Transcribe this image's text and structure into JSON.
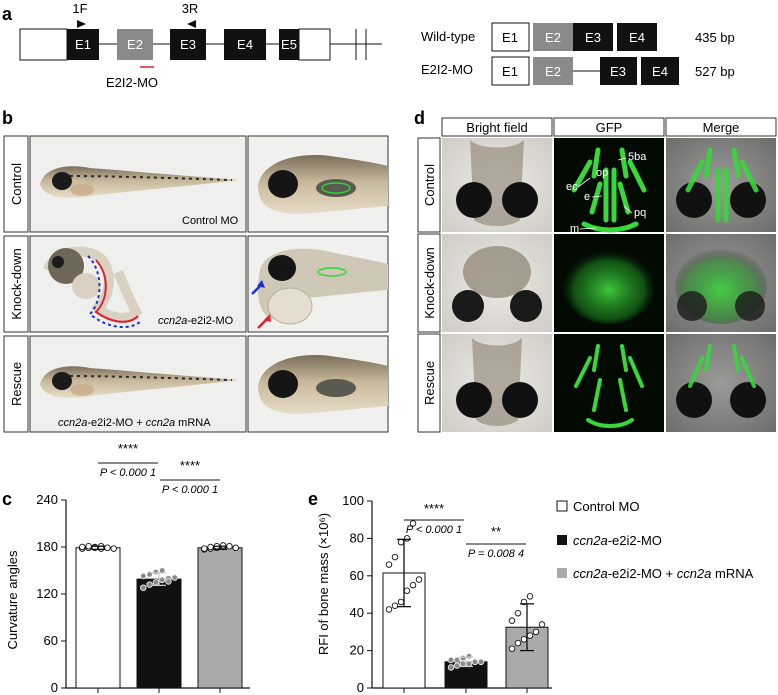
{
  "panels": {
    "a": {
      "label": "a",
      "primers": {
        "forward": "1F",
        "reverse": "3R"
      },
      "exons": [
        "E1",
        "E2",
        "E3",
        "E4",
        "E5"
      ],
      "morpholino": "E2I2-MO",
      "rows": [
        {
          "name": "Wild-type",
          "exons": [
            "E1",
            "E2",
            "E3",
            "E4"
          ],
          "size": "435 bp"
        },
        {
          "name": "E2I2-MO",
          "exons": [
            "E1",
            "E2",
            "E3",
            "E4"
          ],
          "size": "527 bp"
        }
      ]
    },
    "b": {
      "label": "b",
      "rows": [
        "Control",
        "Knock-down",
        "Rescue"
      ],
      "captions": {
        "control": "Control MO",
        "knockdown_gene": "ccn2a",
        "knockdown_suffix": "-e2i2-MO",
        "rescue_gene1": "ccn2a",
        "rescue_mid": "-e2i2-MO + ",
        "rescue_gene2": "ccn2a",
        "rescue_suffix": " mRNA"
      }
    },
    "d": {
      "label": "d",
      "columns": [
        "Bright field",
        "GFP",
        "Merge"
      ],
      "rows": [
        "Control",
        "Knock-down",
        "Rescue"
      ],
      "annotations": [
        "5ba",
        "op",
        "ec",
        "e",
        "pq",
        "m"
      ]
    },
    "c": {
      "label": "c",
      "significance": [
        "****",
        "****"
      ],
      "pvalues": [
        "P < 0.000 1",
        "P < 0.000 1"
      ]
    },
    "e": {
      "label": "e",
      "significance": [
        "****",
        "**"
      ],
      "pvalues": [
        "P < 0.000 1",
        "P = 0.008 4"
      ]
    }
  },
  "legend": [
    {
      "text": "Control MO",
      "color": "#ffffff"
    },
    {
      "gene": "ccn2a",
      "text": "-e2i2-MO",
      "color": "#111111"
    },
    {
      "gene": "ccn2a",
      "text": "-e2i2-MO + ",
      "gene2": "ccn2a",
      "suffix": " mRNA",
      "color": "#aaaaaa"
    }
  ],
  "colors": {
    "control": "#ffffff",
    "knockdown": "#111111",
    "rescue": "#aaaaaa",
    "gfp": "#35d13a",
    "red_marker": "#e0202a",
    "blue_marker": "#2030d0"
  },
  "chart_data": [
    {
      "type": "bar",
      "panel": "c",
      "categories": [
        "Control MO",
        "ccn2a-e2i2-MO",
        "ccn2a-e2i2-MO + ccn2a mRNA"
      ],
      "values": [
        179,
        139,
        179
      ],
      "errors": [
        2,
        8,
        2
      ],
      "points": [
        [
          178,
          179,
          180,
          181,
          179,
          178,
          180,
          181,
          179,
          178
        ],
        [
          128,
          132,
          135,
          138,
          140,
          141,
          143,
          145,
          148,
          150,
          136
        ],
        [
          177,
          178,
          179,
          180,
          181,
          179,
          178,
          180,
          181,
          182
        ]
      ],
      "ylabel": "Curvature angles",
      "ylim": [
        0,
        240
      ],
      "yticks": [
        0,
        60,
        120,
        180,
        240
      ]
    },
    {
      "type": "bar",
      "panel": "e",
      "categories": [
        "Control MO",
        "ccn2a-e2i2-MO",
        "ccn2a-e2i2-MO + ccn2a mRNA"
      ],
      "values": [
        61.5,
        14,
        32.5
      ],
      "errors": [
        18,
        2.5,
        12.5
      ],
      "points": [
        [
          42,
          44,
          46,
          52,
          55,
          58,
          66,
          70,
          78,
          80,
          88
        ],
        [
          11,
          12,
          13,
          13,
          14,
          14,
          15,
          15,
          16,
          17
        ],
        [
          21,
          24,
          26,
          28,
          30,
          34,
          36,
          40,
          46,
          49
        ]
      ],
      "ylabel": "RFI of bone mass (×10⁶)",
      "ylim": [
        0,
        100
      ],
      "yticks": [
        0,
        20,
        40,
        60,
        80,
        100
      ]
    }
  ]
}
